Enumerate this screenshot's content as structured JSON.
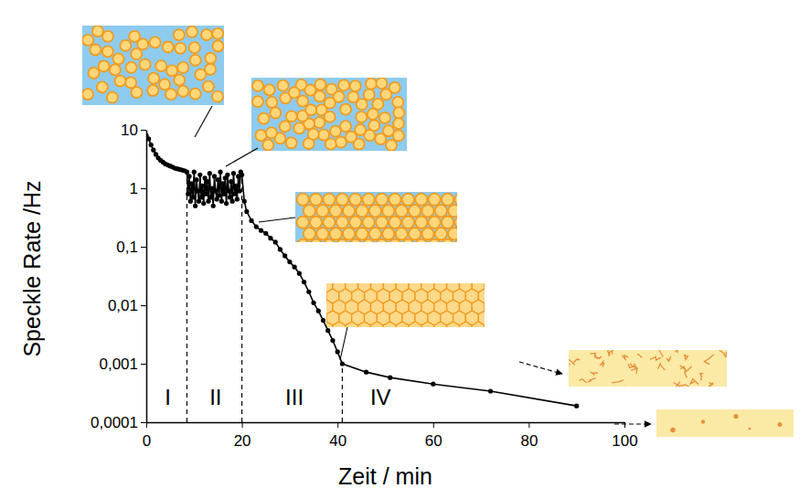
{
  "chart_data": {
    "type": "line",
    "x_label": "Zeit / min",
    "y_label": "Speckle Rate /Hz",
    "log": "y",
    "grid": false,
    "color": "#000000",
    "marker": "circle",
    "xlim": [
      0,
      100
    ],
    "xticks": [
      0,
      20,
      40,
      60,
      80,
      100
    ],
    "ylim": [
      0.0001,
      10
    ],
    "yticks": [
      10,
      1,
      {
        "value": 0.1,
        "label": "0,1"
      },
      {
        "value": 0.01,
        "label": "0,01"
      },
      {
        "value": 0.001,
        "label": "0,001"
      },
      {
        "value": 0.0001,
        "label": "0,0001"
      }
    ],
    "x": [
      0,
      0.5,
      1,
      1.5,
      2,
      2.5,
      3,
      3.5,
      4,
      4.5,
      5,
      5.5,
      6,
      6.5,
      7,
      7.5,
      8,
      8.5,
      8.75,
      9,
      9.25,
      9.5,
      9.75,
      10,
      10.25,
      10.5,
      10.75,
      11,
      11.25,
      11.5,
      11.75,
      12,
      12.25,
      12.5,
      12.75,
      13,
      13.25,
      13.5,
      13.75,
      14,
      14.25,
      14.5,
      14.75,
      15,
      15.25,
      15.5,
      15.75,
      16,
      16.25,
      16.5,
      16.75,
      17,
      17.25,
      17.5,
      17.75,
      18,
      18.25,
      18.5,
      18.75,
      19,
      19.25,
      19.5,
      19.75,
      20,
      20.5,
      21,
      22,
      23,
      24,
      25,
      26,
      27,
      28,
      29,
      30,
      31,
      32,
      33,
      34,
      35,
      36,
      37,
      38,
      39,
      40,
      41,
      46,
      51,
      60,
      72,
      90
    ],
    "values": [
      8,
      7,
      5.5,
      4.5,
      3.8,
      3.3,
      3,
      2.8,
      2.6,
      2.5,
      2.4,
      2.3,
      2.2,
      2.15,
      2.1,
      2.05,
      2,
      1.9,
      0.8,
      1.6,
      0.6,
      1.2,
      0.7,
      1.9,
      0.5,
      1.4,
      0.9,
      0.6,
      1.7,
      0.7,
      1.1,
      0.55,
      1.5,
      0.8,
      1.3,
      0.6,
      1.8,
      0.7,
      1.0,
      0.5,
      1.6,
      0.9,
      0.65,
      1.4,
      0.75,
      1.9,
      0.6,
      1.2,
      0.8,
      1.5,
      0.55,
      1.7,
      0.9,
      0.7,
      1.3,
      0.6,
      1.8,
      0.8,
      1.1,
      0.65,
      1.6,
      0.9,
      1.9,
      1.7,
      0.6,
      0.4,
      0.28,
      0.22,
      0.19,
      0.17,
      0.14,
      0.12,
      0.09,
      0.07,
      0.055,
      0.045,
      0.035,
      0.025,
      0.017,
      0.011,
      0.008,
      0.0055,
      0.0037,
      0.0025,
      0.0016,
      0.001,
      0.00072,
      0.00058,
      0.00045,
      0.00034,
      0.00019
    ],
    "boundaries": [
      8.5,
      20,
      41
    ],
    "annotations": [
      {
        "text": "I",
        "x": 4.5,
        "y": 0.0002
      },
      {
        "text": "II",
        "x": 14.5,
        "y": 0.0002
      },
      {
        "text": "III",
        "x": 31,
        "y": 0.0002
      },
      {
        "text": "IV",
        "x": 49,
        "y": 0.0002
      }
    ]
  }
}
